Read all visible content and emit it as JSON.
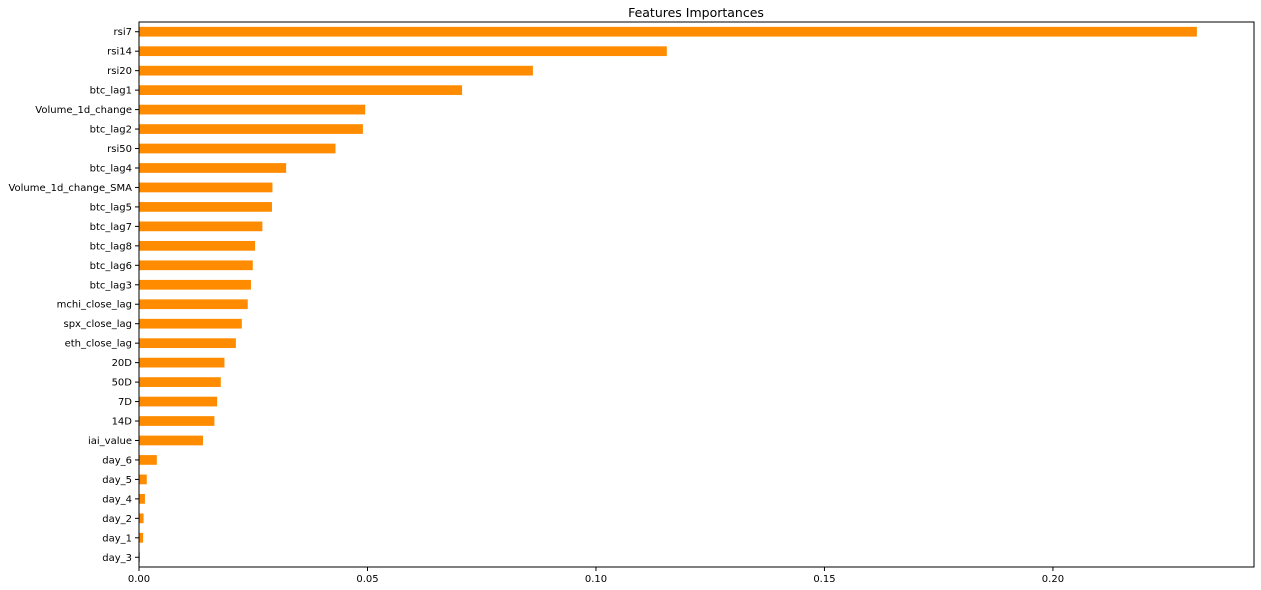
{
  "chart_data": {
    "type": "bar",
    "orientation": "horizontal",
    "title": "Features Importances",
    "xlabel": "",
    "ylabel": "",
    "xlim": [
      0,
      0.244
    ],
    "xticks": [
      0.0,
      0.05,
      0.1,
      0.15,
      0.2
    ],
    "xtick_labels": [
      "0.00",
      "0.05",
      "0.10",
      "0.15",
      "0.20"
    ],
    "grid": false,
    "bar_color": "#ff8c00",
    "categories": [
      "rsi7",
      "rsi14",
      "rsi20",
      "btc_lag1",
      "Volume_1d_change",
      "btc_lag2",
      "rsi50",
      "btc_lag4",
      "Volume_1d_change_SMA",
      "btc_lag5",
      "btc_lag7",
      "btc_lag8",
      "btc_lag6",
      "btc_lag3",
      "mchi_close_lag",
      "spx_close_lag",
      "eth_close_lag",
      "20D",
      "50D",
      "7D",
      "14D",
      "iai_value",
      "day_6",
      "day_5",
      "day_4",
      "day_2",
      "day_1",
      "day_3"
    ],
    "values": [
      0.2315,
      0.1155,
      0.0862,
      0.0707,
      0.0495,
      0.049,
      0.043,
      0.0322,
      0.0292,
      0.0291,
      0.027,
      0.0254,
      0.0249,
      0.0245,
      0.0238,
      0.0225,
      0.0212,
      0.0187,
      0.0179,
      0.0171,
      0.0165,
      0.014,
      0.0039,
      0.0017,
      0.0013,
      0.001,
      0.0009,
      0.0002
    ]
  }
}
